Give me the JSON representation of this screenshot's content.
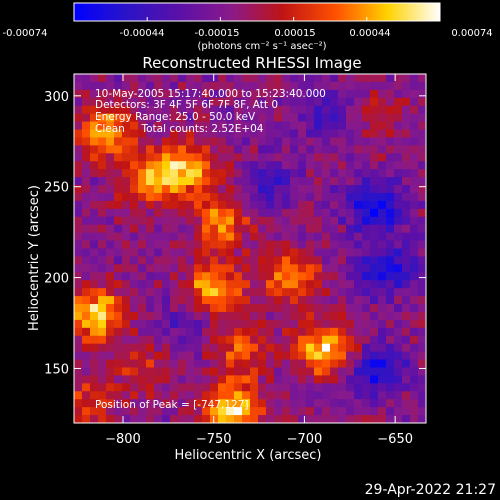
{
  "colorbar": {
    "ticks": [
      "-0.00074",
      "-0.00044",
      "-0.00015",
      "0.00015",
      "0.00044",
      "0.00074"
    ],
    "unit": "(photons cm⁻² s⁻¹ asec⁻²)",
    "colors": [
      "#0000ff",
      "#2a14c8",
      "#5a10a8",
      "#8a1a8a",
      "#c01414",
      "#ff5000",
      "#ffd200",
      "#ffffff"
    ]
  },
  "chart_data": {
    "type": "heatmap",
    "title": "Reconstructed RHESSI Image",
    "xlabel": "Heliocentric X (arcsec)",
    "ylabel": "Heliocentric Y (arcsec)",
    "xlim": [
      -827,
      -633
    ],
    "ylim": [
      120,
      312
    ],
    "xticks": [
      -800,
      -750,
      -700,
      -650
    ],
    "yticks": [
      150,
      200,
      250,
      300
    ],
    "color_range": [
      -0.00074,
      0.00074
    ],
    "annotation_lines": [
      "10-May-2005 15:17:40.000 to 15:23:40.000",
      "Detectors: 3F 4F 5F 6F 7F 8F, Att 0",
      "Energy Range: 25.0 - 50.0 keV",
      "Clean     Total counts: 2.52E+04"
    ],
    "peak_label": "Position of Peak = [-747,127]",
    "peak": {
      "x": -747,
      "y": 127
    },
    "bright_regions": [
      {
        "x": -810,
        "y": 280,
        "value": 0.0006
      },
      {
        "x": -785,
        "y": 255,
        "value": 0.0005
      },
      {
        "x": -765,
        "y": 260,
        "value": 0.0006
      },
      {
        "x": -745,
        "y": 230,
        "value": 0.0005
      },
      {
        "x": -750,
        "y": 195,
        "value": 0.0006
      },
      {
        "x": -708,
        "y": 200,
        "value": 0.0005
      },
      {
        "x": -735,
        "y": 160,
        "value": 0.0004
      },
      {
        "x": -815,
        "y": 180,
        "value": 0.0007
      },
      {
        "x": -790,
        "y": 150,
        "value": 0.0003
      },
      {
        "x": -688,
        "y": 160,
        "value": 0.0007
      },
      {
        "x": -740,
        "y": 128,
        "value": 0.00074
      },
      {
        "x": -660,
        "y": 290,
        "value": 0.0002
      },
      {
        "x": -820,
        "y": 130,
        "value": 0.0003
      }
    ],
    "dark_regions": [
      {
        "x": -660,
        "y": 240,
        "value": -0.0006
      },
      {
        "x": -655,
        "y": 205,
        "value": -0.0005
      },
      {
        "x": -660,
        "y": 150,
        "value": -0.0005
      },
      {
        "x": -720,
        "y": 250,
        "value": -0.0003
      },
      {
        "x": -770,
        "y": 175,
        "value": -0.0002
      },
      {
        "x": -690,
        "y": 290,
        "value": -0.0003
      }
    ]
  },
  "footer": {
    "timestamp": "29-Apr-2022 21:27"
  }
}
